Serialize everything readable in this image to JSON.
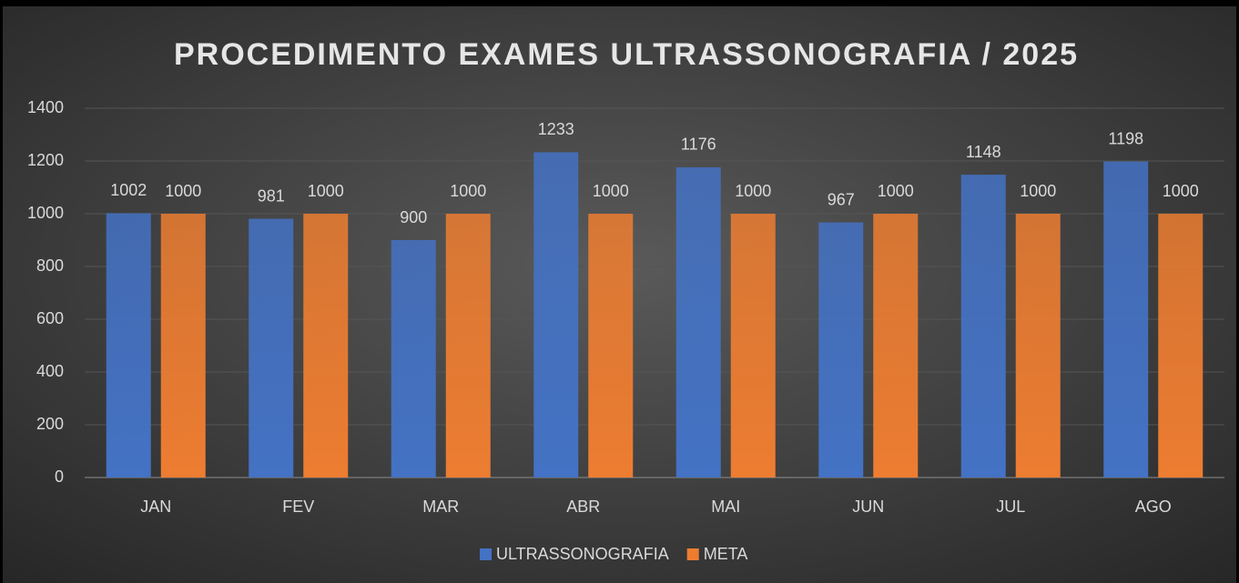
{
  "chart_data": {
    "type": "bar",
    "title": "PROCEDIMENTO EXAMES ULTRASSONOGRAFIA / 2025",
    "categories": [
      "JAN",
      "FEV",
      "MAR",
      "ABR",
      "MAI",
      "JUN",
      "JUL",
      "AGO"
    ],
    "series": [
      {
        "name": "ULTRASSONOGRAFIA",
        "color": "#4472c4",
        "values": [
          1002,
          981,
          900,
          1233,
          1176,
          967,
          1148,
          1198
        ]
      },
      {
        "name": "META",
        "color": "#ed7d31",
        "values": [
          1000,
          1000,
          1000,
          1000,
          1000,
          1000,
          1000,
          1000
        ]
      }
    ],
    "ylim": [
      0,
      1400
    ],
    "yticks": [
      0,
      200,
      400,
      600,
      800,
      1000,
      1200,
      1400
    ],
    "grid": true,
    "legend": "bottom"
  }
}
